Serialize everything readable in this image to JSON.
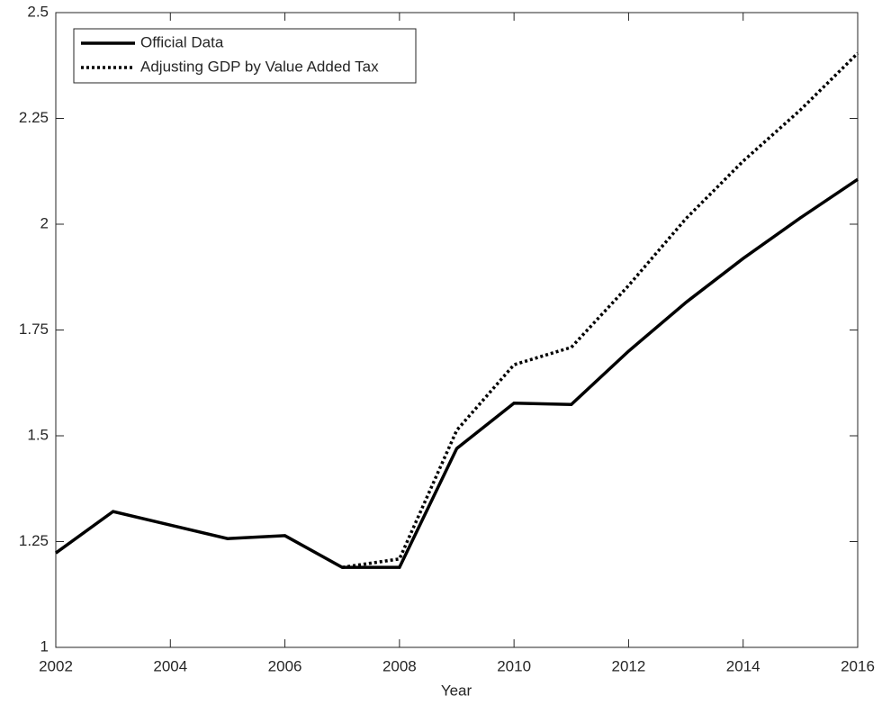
{
  "chart_data": {
    "type": "line",
    "xlabel": "Year",
    "x": [
      2002,
      2003,
      2004,
      2005,
      2006,
      2007,
      2008,
      2009,
      2010,
      2011,
      2012,
      2013,
      2014,
      2015,
      2016
    ],
    "series": [
      {
        "name": "Official Data",
        "color": "#000000",
        "style": "solid",
        "values": [
          1.223,
          1.321,
          1.289,
          1.257,
          1.264,
          1.189,
          1.189,
          1.47,
          1.577,
          1.574,
          1.7,
          1.815,
          1.919,
          2.015,
          2.106
        ]
      },
      {
        "name": "Adjusting GDP by Value Added Tax",
        "color": "#000000",
        "style": "dotted",
        "values": [
          null,
          null,
          null,
          null,
          null,
          1.189,
          1.209,
          1.513,
          1.668,
          1.709,
          1.855,
          2.013,
          2.149,
          2.27,
          2.404
        ]
      }
    ],
    "xlim": [
      2002,
      2016
    ],
    "xticks": [
      2002,
      2004,
      2006,
      2008,
      2010,
      2012,
      2014,
      2016
    ],
    "ylim": [
      1,
      2.5
    ],
    "yticks": [
      1,
      1.25,
      1.5,
      1.75,
      2,
      2.25,
      2.5
    ],
    "grid": false,
    "legend": "upper-left"
  }
}
